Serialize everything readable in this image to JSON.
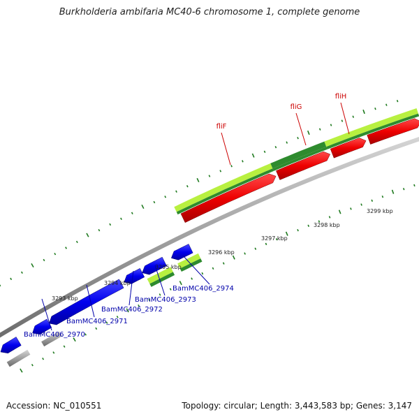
{
  "title": "Burkholderia ambifaria MC40-6 chromosome 1, complete genome",
  "footer": {
    "accession": "Accession: NC_010551",
    "topology": "Topology: circular; Length: 3,443,583 bp; Genes: 3,147"
  },
  "colors": {
    "backbone": "#8a8a8a",
    "forward_cds": "#ee0000",
    "reverse_cds": "#0000ee",
    "gene_light": "#b8f040",
    "gene_dark": "#2e8b2e",
    "tick": "#1f7a1f",
    "label_forward": "#cc0000",
    "label_reverse": "#0000aa"
  },
  "ticks": [
    {
      "label": "3293 kbp"
    },
    {
      "label": "3294 kbp"
    },
    {
      "label": "3295 kbp"
    },
    {
      "label": "3296 kbp"
    },
    {
      "label": "3297 kbp"
    },
    {
      "label": "3298 kbp"
    },
    {
      "label": "3299 kbp"
    }
  ],
  "genes_forward": [
    {
      "name": "fliF"
    },
    {
      "name": "fliG"
    },
    {
      "name": "fliH"
    }
  ],
  "genes_reverse": [
    {
      "name": "BamMC406_2970"
    },
    {
      "name": "BamMC406_2971"
    },
    {
      "name": "BamMC406_2972"
    },
    {
      "name": "BamMC406_2973"
    },
    {
      "name": "BamMC406_2974"
    }
  ]
}
